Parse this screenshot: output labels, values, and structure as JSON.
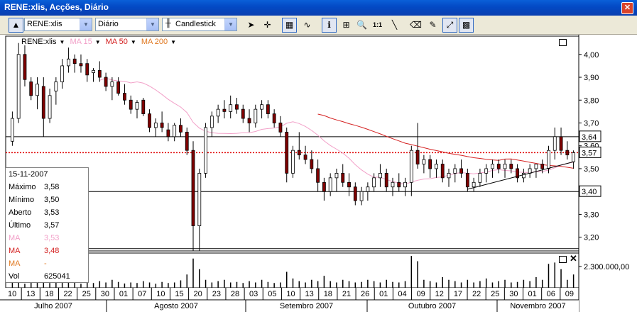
{
  "window": {
    "title": "RENE:xlis, Acções, Diário",
    "close_label": "✕"
  },
  "toolbar": {
    "symbol": "RENE:xlis",
    "period": "Diário",
    "chart_type": "Candlestick",
    "zoom_label": "1:1",
    "tools": [
      "cursor-arrow",
      "crosshair",
      "grid-toggle",
      "indicator",
      "info",
      "add-indicator",
      "zoom",
      "one-to-one",
      "line",
      "eraser",
      "highlight",
      "compare",
      "color-bars"
    ]
  },
  "legend": {
    "symbol": "RENE:xlis",
    "ma15": "MA 15",
    "ma50": "MA 50",
    "ma200": "MA 200",
    "colors": {
      "ma15": "#f2a0c8",
      "ma50": "#d42020",
      "ma200": "#e07820"
    }
  },
  "infobox": {
    "date": "15-11-2007",
    "rows": [
      {
        "k": "Máximo",
        "v": "3,58",
        "color": "#000000"
      },
      {
        "k": "Mínimo",
        "v": "3,50",
        "color": "#000000"
      },
      {
        "k": "Aberto",
        "v": "3,53",
        "color": "#000000"
      },
      {
        "k": "Último",
        "v": "3,57",
        "color": "#000000"
      },
      {
        "k": "MA",
        "v": "3,53",
        "color": "#f2a0c8"
      },
      {
        "k": "MA",
        "v": "3,48",
        "color": "#d42020"
      },
      {
        "k": "MA",
        "v": "-",
        "color": "#e07820"
      },
      {
        "k": "Vol",
        "v": "625041",
        "color": "#000000"
      }
    ]
  },
  "chart_data": {
    "type": "candlestick",
    "price_axis": {
      "ticks": [
        "4,00",
        "3,90",
        "3,80",
        "3,70",
        "3,60",
        "3,50",
        "3,40",
        "3,30",
        "3,20"
      ],
      "ylim": [
        3.14,
        4.08
      ]
    },
    "price_labels": [
      {
        "value": 3.64,
        "text": "3,64"
      },
      {
        "value": 3.57,
        "text": "3,57"
      },
      {
        "value": 3.4,
        "text": "3,40"
      }
    ],
    "hlines": [
      3.64,
      3.4,
      3.15
    ],
    "current_price": 3.57,
    "volume_axis": {
      "tick": "2.300.000,00"
    },
    "day_ticks": [
      "10",
      "13",
      "18",
      "22",
      "25",
      "30",
      "01",
      "07",
      "10",
      "15",
      "20",
      "23",
      "28",
      "03",
      "05",
      "10",
      "13",
      "18",
      "21",
      "26",
      "01",
      "04",
      "09",
      "12",
      "17",
      "22",
      "25",
      "30",
      "01",
      "06",
      "09"
    ],
    "months": [
      "Julho 2007",
      "Agosto 2007",
      "Setembro 2007",
      "Outubro 2007",
      "Novembro 2007"
    ],
    "candles": [
      [
        3.62,
        3.75,
        3.6,
        3.72
      ],
      [
        3.72,
        4.05,
        3.7,
        4.0
      ],
      [
        4.0,
        4.04,
        3.86,
        3.89
      ],
      [
        3.88,
        3.9,
        3.8,
        3.82
      ],
      [
        3.82,
        3.9,
        3.76,
        3.87
      ],
      [
        3.86,
        3.9,
        3.64,
        3.72
      ],
      [
        3.72,
        3.85,
        3.7,
        3.82
      ],
      [
        3.84,
        3.9,
        3.78,
        3.88
      ],
      [
        3.88,
        3.98,
        3.85,
        3.95
      ],
      [
        3.95,
        4.03,
        3.92,
        3.98
      ],
      [
        3.98,
        4.0,
        3.92,
        3.96
      ],
      [
        3.96,
        4.0,
        3.92,
        3.95
      ],
      [
        3.96,
        3.98,
        3.88,
        3.91
      ],
      [
        3.92,
        3.94,
        3.88,
        3.93
      ],
      [
        3.93,
        3.97,
        3.88,
        3.9
      ],
      [
        3.9,
        3.92,
        3.84,
        3.86
      ],
      [
        3.86,
        3.9,
        3.8,
        3.88
      ],
      [
        3.88,
        3.9,
        3.82,
        3.83
      ],
      [
        3.83,
        3.87,
        3.78,
        3.8
      ],
      [
        3.8,
        3.82,
        3.74,
        3.76
      ],
      [
        3.76,
        3.8,
        3.72,
        3.79
      ],
      [
        3.8,
        3.81,
        3.73,
        3.74
      ],
      [
        3.74,
        3.76,
        3.66,
        3.68
      ],
      [
        3.68,
        3.72,
        3.64,
        3.7
      ],
      [
        3.7,
        3.75,
        3.66,
        3.68
      ],
      [
        3.67,
        3.7,
        3.62,
        3.64
      ],
      [
        3.64,
        3.7,
        3.62,
        3.69
      ],
      [
        3.69,
        3.72,
        3.64,
        3.66
      ],
      [
        3.66,
        3.68,
        3.56,
        3.58
      ],
      [
        3.58,
        3.62,
        3.14,
        3.25
      ],
      [
        3.25,
        3.5,
        3.14,
        3.48
      ],
      [
        3.48,
        3.7,
        3.46,
        3.68
      ],
      [
        3.68,
        3.75,
        3.64,
        3.73
      ],
      [
        3.73,
        3.78,
        3.7,
        3.76
      ],
      [
        3.76,
        3.8,
        3.72,
        3.75
      ],
      [
        3.75,
        3.82,
        3.72,
        3.78
      ],
      [
        3.78,
        3.81,
        3.74,
        3.76
      ],
      [
        3.76,
        3.78,
        3.7,
        3.72
      ],
      [
        3.72,
        3.76,
        3.66,
        3.7
      ],
      [
        3.7,
        3.78,
        3.68,
        3.76
      ],
      [
        3.76,
        3.8,
        3.72,
        3.78
      ],
      [
        3.78,
        3.8,
        3.72,
        3.74
      ],
      [
        3.74,
        3.76,
        3.68,
        3.7
      ],
      [
        3.7,
        3.73,
        3.64,
        3.66
      ],
      [
        3.66,
        3.68,
        3.44,
        3.48
      ],
      [
        3.48,
        3.6,
        3.46,
        3.58
      ],
      [
        3.58,
        3.66,
        3.54,
        3.56
      ],
      [
        3.56,
        3.6,
        3.52,
        3.54
      ],
      [
        3.54,
        3.58,
        3.48,
        3.5
      ],
      [
        3.5,
        3.54,
        3.4,
        3.44
      ],
      [
        3.44,
        3.46,
        3.36,
        3.4
      ],
      [
        3.4,
        3.48,
        3.38,
        3.46
      ],
      [
        3.46,
        3.5,
        3.4,
        3.48
      ],
      [
        3.48,
        3.52,
        3.42,
        3.44
      ],
      [
        3.44,
        3.48,
        3.38,
        3.42
      ],
      [
        3.42,
        3.44,
        3.34,
        3.36
      ],
      [
        3.36,
        3.42,
        3.34,
        3.4
      ],
      [
        3.4,
        3.44,
        3.36,
        3.42
      ],
      [
        3.42,
        3.48,
        3.4,
        3.46
      ],
      [
        3.46,
        3.52,
        3.42,
        3.48
      ],
      [
        3.48,
        3.5,
        3.4,
        3.42
      ],
      [
        3.42,
        3.46,
        3.38,
        3.44
      ],
      [
        3.44,
        3.48,
        3.4,
        3.42
      ],
      [
        3.42,
        3.46,
        3.38,
        3.44
      ],
      [
        3.44,
        3.6,
        3.38,
        3.58
      ],
      [
        3.58,
        3.7,
        3.5,
        3.52
      ],
      [
        3.52,
        3.56,
        3.48,
        3.54
      ],
      [
        3.54,
        3.56,
        3.46,
        3.5
      ],
      [
        3.5,
        3.54,
        3.46,
        3.52
      ],
      [
        3.52,
        3.54,
        3.44,
        3.46
      ],
      [
        3.46,
        3.5,
        3.42,
        3.48
      ],
      [
        3.48,
        3.52,
        3.44,
        3.5
      ],
      [
        3.5,
        3.54,
        3.46,
        3.48
      ],
      [
        3.48,
        3.5,
        3.4,
        3.42
      ],
      [
        3.42,
        3.46,
        3.4,
        3.44
      ],
      [
        3.44,
        3.5,
        3.42,
        3.48
      ],
      [
        3.48,
        3.52,
        3.44,
        3.5
      ],
      [
        3.5,
        3.54,
        3.46,
        3.52
      ],
      [
        3.52,
        3.54,
        3.48,
        3.5
      ],
      [
        3.5,
        3.54,
        3.46,
        3.52
      ],
      [
        3.52,
        3.54,
        3.48,
        3.5
      ],
      [
        3.5,
        3.52,
        3.44,
        3.46
      ],
      [
        3.46,
        3.5,
        3.44,
        3.48
      ],
      [
        3.48,
        3.52,
        3.46,
        3.5
      ],
      [
        3.5,
        3.52,
        3.46,
        3.52
      ],
      [
        3.52,
        3.54,
        3.48,
        3.5
      ],
      [
        3.5,
        3.6,
        3.48,
        3.58
      ],
      [
        3.58,
        3.68,
        3.54,
        3.64
      ],
      [
        3.64,
        3.68,
        3.56,
        3.58
      ],
      [
        3.58,
        3.62,
        3.54,
        3.56
      ],
      [
        3.53,
        3.58,
        3.5,
        3.57
      ]
    ],
    "volume": [
      0.25,
      0.3,
      0.15,
      0.2,
      0.28,
      0.22,
      0.18,
      0.3,
      0.24,
      0.35,
      0.2,
      0.15,
      0.22,
      0.18,
      0.25,
      0.2,
      0.3,
      0.22,
      0.16,
      0.2,
      0.18,
      0.25,
      0.2,
      0.15,
      0.22,
      0.18,
      0.2,
      0.28,
      0.5,
      1.1,
      0.7,
      0.3,
      0.2,
      0.25,
      0.3,
      0.2,
      0.22,
      0.18,
      0.25,
      0.2,
      0.3,
      0.22,
      0.18,
      0.2,
      0.6,
      0.35,
      0.25,
      0.2,
      0.3,
      0.25,
      0.45,
      0.25,
      0.2,
      0.3,
      0.25,
      0.2,
      0.22,
      0.3,
      0.25,
      0.2,
      0.3,
      0.22,
      0.2,
      0.25,
      1.2,
      1.0,
      0.3,
      0.25,
      0.2,
      0.4,
      0.3,
      0.25,
      0.2,
      0.3,
      0.2,
      0.25,
      0.35,
      0.2,
      0.25,
      0.3,
      0.2,
      0.22,
      0.3,
      0.25,
      0.4,
      0.3,
      0.9,
      0.95,
      0.7,
      0.3,
      0.5
    ]
  }
}
